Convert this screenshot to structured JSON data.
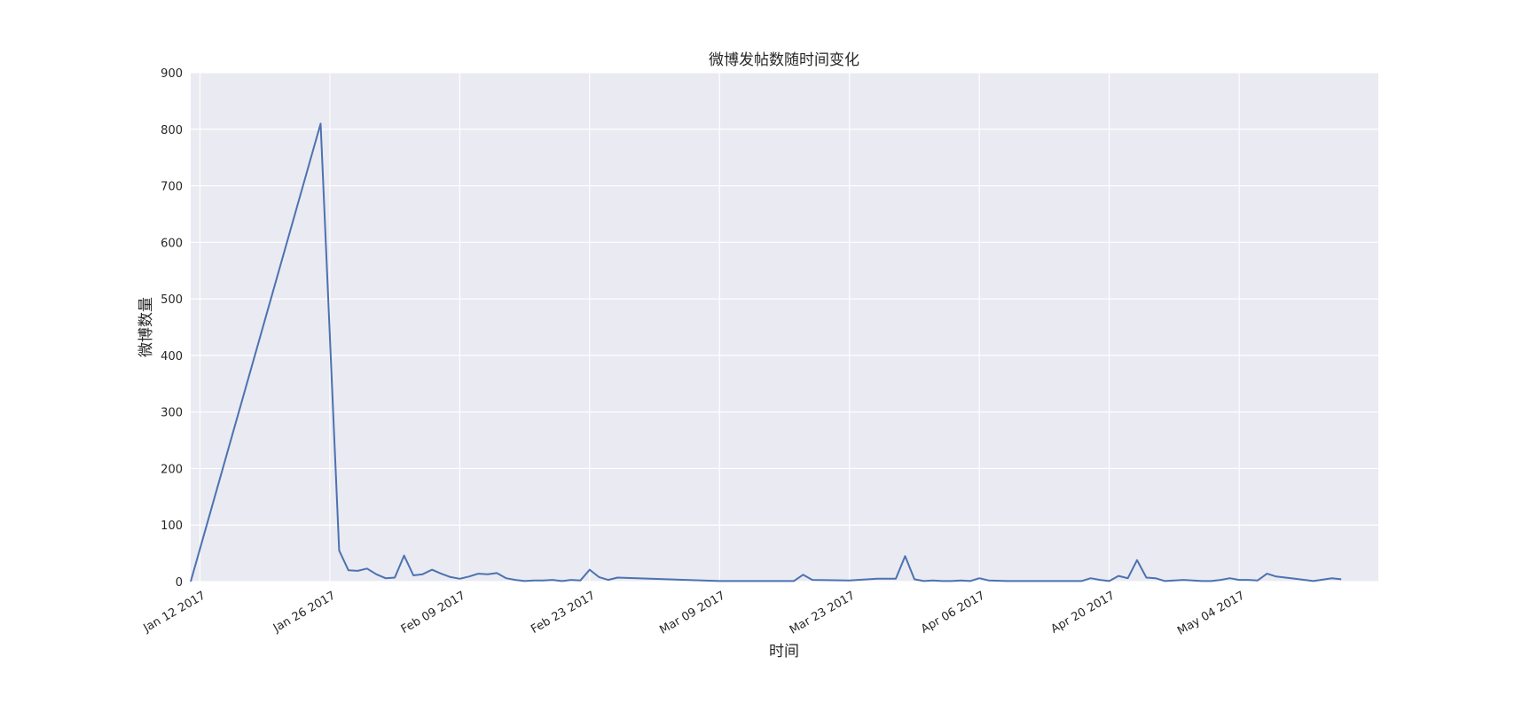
{
  "chart_data": {
    "type": "line",
    "title": "微博发帖数随时间变化",
    "xlabel": "时间",
    "ylabel": "微博数量",
    "xlim": [
      "2017-01-11",
      "2017-05-19"
    ],
    "ylim": [
      0,
      900
    ],
    "yticks": [
      0,
      100,
      200,
      300,
      400,
      500,
      600,
      700,
      800,
      900
    ],
    "xticks": [
      {
        "date": "2017-01-12",
        "label": "Jan 12 2017"
      },
      {
        "date": "2017-01-26",
        "label": "Jan 26 2017"
      },
      {
        "date": "2017-02-09",
        "label": "Feb 09 2017"
      },
      {
        "date": "2017-02-23",
        "label": "Feb 23 2017"
      },
      {
        "date": "2017-03-09",
        "label": "Mar 09 2017"
      },
      {
        "date": "2017-03-23",
        "label": "Mar 23 2017"
      },
      {
        "date": "2017-04-06",
        "label": "Apr 06 2017"
      },
      {
        "date": "2017-04-20",
        "label": "Apr 20 2017"
      },
      {
        "date": "2017-05-04",
        "label": "May 04 2017"
      }
    ],
    "grid": true,
    "colors": {
      "line": "#4c72b0",
      "plot_bg": "#eaeaf2",
      "grid": "#ffffff"
    },
    "series": [
      {
        "x": [
          "2017-01-11",
          "2017-01-25",
          "2017-01-27",
          "2017-01-28",
          "2017-01-29",
          "2017-01-30",
          "2017-01-31",
          "2017-02-01",
          "2017-02-02",
          "2017-02-03",
          "2017-02-04",
          "2017-02-05",
          "2017-02-06",
          "2017-02-07",
          "2017-02-08",
          "2017-02-09",
          "2017-02-10",
          "2017-02-11",
          "2017-02-12",
          "2017-02-13",
          "2017-02-14",
          "2017-02-15",
          "2017-02-16",
          "2017-02-17",
          "2017-02-18",
          "2017-02-19",
          "2017-02-20",
          "2017-02-21",
          "2017-02-22",
          "2017-02-23",
          "2017-02-24",
          "2017-02-25",
          "2017-02-26",
          "2017-03-09",
          "2017-03-17",
          "2017-03-18",
          "2017-03-19",
          "2017-03-23",
          "2017-03-26",
          "2017-03-28",
          "2017-03-29",
          "2017-03-30",
          "2017-03-31",
          "2017-04-01",
          "2017-04-02",
          "2017-04-03",
          "2017-04-04",
          "2017-04-05",
          "2017-04-06",
          "2017-04-07",
          "2017-04-09",
          "2017-04-17",
          "2017-04-18",
          "2017-04-19",
          "2017-04-20",
          "2017-04-21",
          "2017-04-22",
          "2017-04-23",
          "2017-04-24",
          "2017-04-25",
          "2017-04-26",
          "2017-04-27",
          "2017-04-28",
          "2017-04-29",
          "2017-04-30",
          "2017-05-01",
          "2017-05-02",
          "2017-05-03",
          "2017-05-04",
          "2017-05-05",
          "2017-05-06",
          "2017-05-07",
          "2017-05-08",
          "2017-05-10",
          "2017-05-12",
          "2017-05-14",
          "2017-05-15"
        ],
        "y": [
          0,
          810,
          55,
          20,
          19,
          23,
          13,
          6,
          7,
          46,
          11,
          13,
          21,
          14,
          8,
          5,
          9,
          14,
          13,
          15,
          6,
          3,
          1,
          2,
          2,
          3,
          1,
          3,
          2,
          21,
          8,
          3,
          7,
          1,
          1,
          12,
          3,
          2,
          5,
          5,
          45,
          4,
          1,
          2,
          1,
          1,
          2,
          1,
          6,
          2,
          1,
          1,
          6,
          3,
          1,
          10,
          6,
          38,
          7,
          6,
          1,
          2,
          3,
          2,
          1,
          1,
          3,
          6,
          3,
          3,
          2,
          14,
          9,
          5,
          1,
          6,
          4
        ]
      }
    ]
  }
}
